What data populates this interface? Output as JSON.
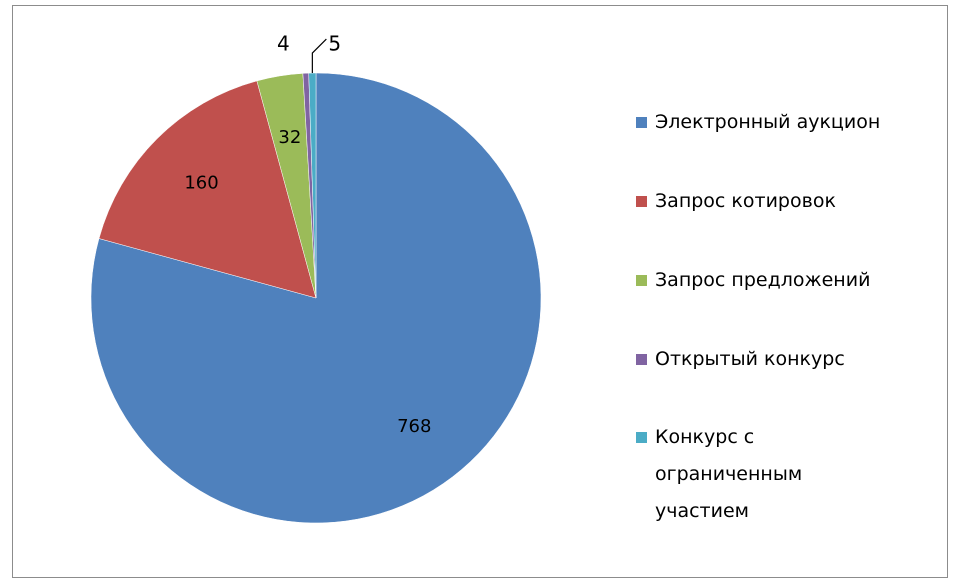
{
  "chart_data": {
    "type": "pie",
    "categories": [
      "Электронный аукцион",
      "Запрос котировок",
      "Запрос предложений",
      "Открытый конкурс",
      "Конкурс с ограниченным участием"
    ],
    "values": [
      768,
      160,
      32,
      4,
      5
    ],
    "colors": [
      "#4f81bd",
      "#c0504d",
      "#9bbb59",
      "#8064a2",
      "#4bacc6"
    ],
    "legend": "right"
  }
}
